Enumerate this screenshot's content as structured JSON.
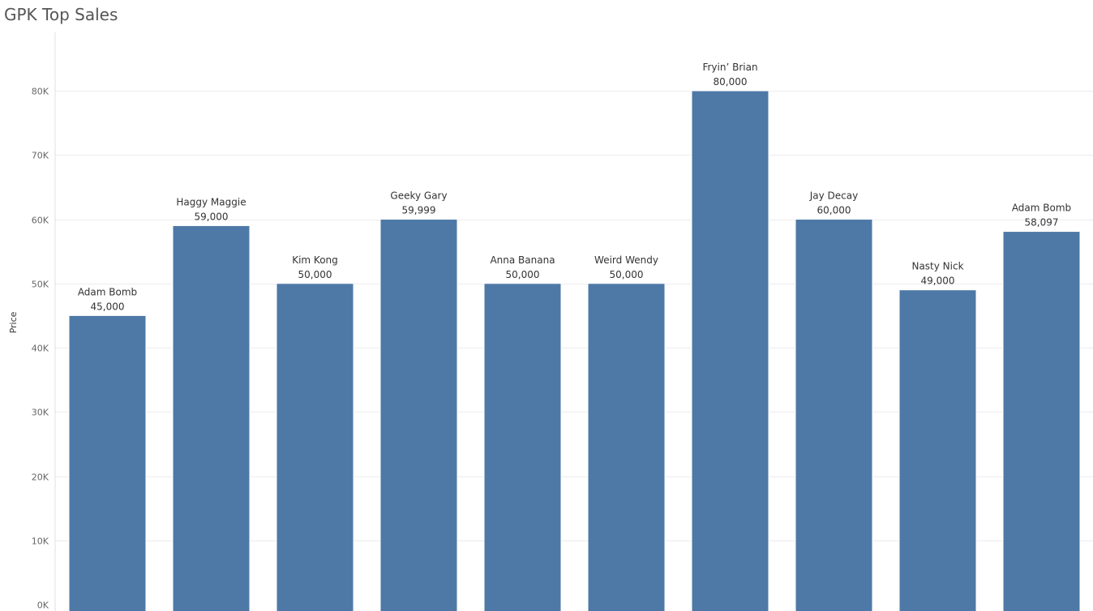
{
  "title": "GPK Top Sales",
  "colors": {
    "bar": "#4e79a7",
    "grid": "#ececec",
    "axis_line": "#e2e2e2"
  },
  "chart_data": {
    "type": "bar",
    "title": "GPK Top Sales",
    "xlabel": "",
    "ylabel": "Price",
    "ylim": [
      0,
      90000
    ],
    "y_ticks": [
      0,
      10000,
      20000,
      30000,
      40000,
      50000,
      60000,
      70000,
      80000
    ],
    "y_tick_labels": [
      "0K",
      "10K",
      "20K",
      "30K",
      "40K",
      "50K",
      "60K",
      "70K",
      "80K"
    ],
    "grid": true,
    "categories": [
      "Adam Bomb",
      "Haggy Maggie",
      "Kim Kong",
      "Geeky Gary",
      "Anna Banana",
      "Weird Wendy",
      "Fryin’ Brian",
      "Jay Decay",
      "Nasty Nick",
      "Adam Bomb"
    ],
    "values": [
      45000,
      59000,
      50000,
      59999,
      50000,
      50000,
      80000,
      60000,
      49000,
      58097
    ],
    "value_labels": [
      "45,000",
      "59,000",
      "50,000",
      "59,999",
      "50,000",
      "50,000",
      "80,000",
      "60,000",
      "49,000",
      "58,097"
    ]
  }
}
